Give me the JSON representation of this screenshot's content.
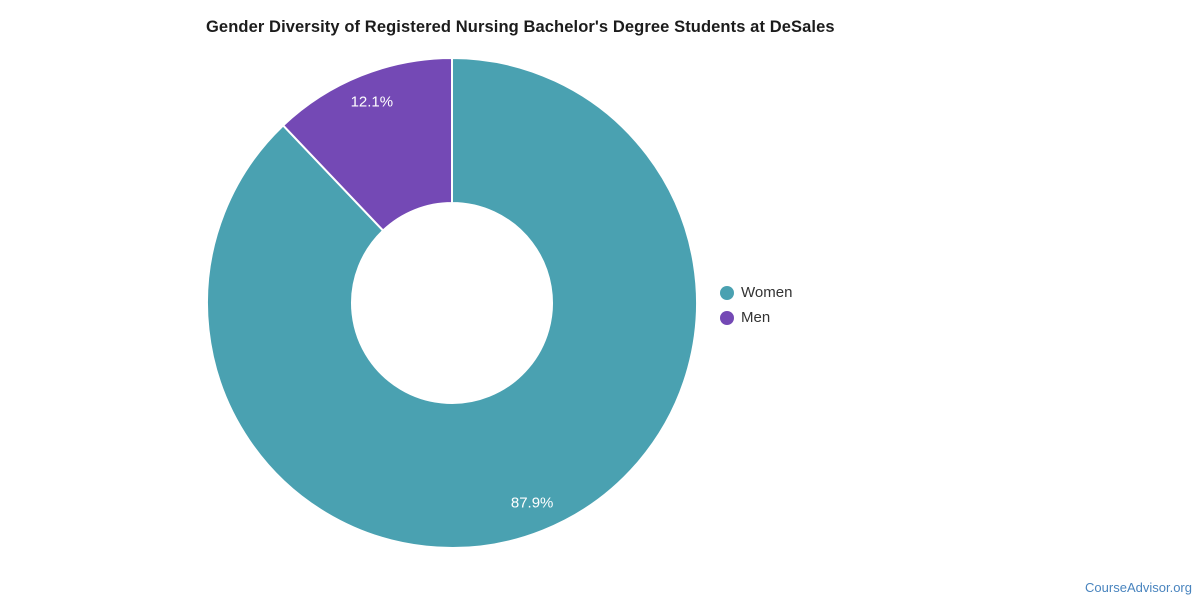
{
  "title": "Gender Diversity of Registered Nursing Bachelor's Degree Students at DeSales",
  "watermark": {
    "text": "CourseAdvisor.org",
    "color": "#4984be"
  },
  "chart_data": {
    "type": "pie",
    "donut": true,
    "title": "Gender Diversity of Registered Nursing Bachelor's Degree Students at DeSales",
    "start_angle_deg": 0,
    "direction": "clockwise",
    "inner_radius_pct": 41,
    "legend_position": "right",
    "labels_position": "inside",
    "label_color": "#ffffff",
    "background": "#ffffff",
    "series": [
      {
        "name": "Women",
        "value": 87.9,
        "label": "87.9%",
        "color": "#4aa1b1"
      },
      {
        "name": "Men",
        "value": 12.1,
        "label": "12.1%",
        "color": "#7449b5"
      }
    ]
  }
}
